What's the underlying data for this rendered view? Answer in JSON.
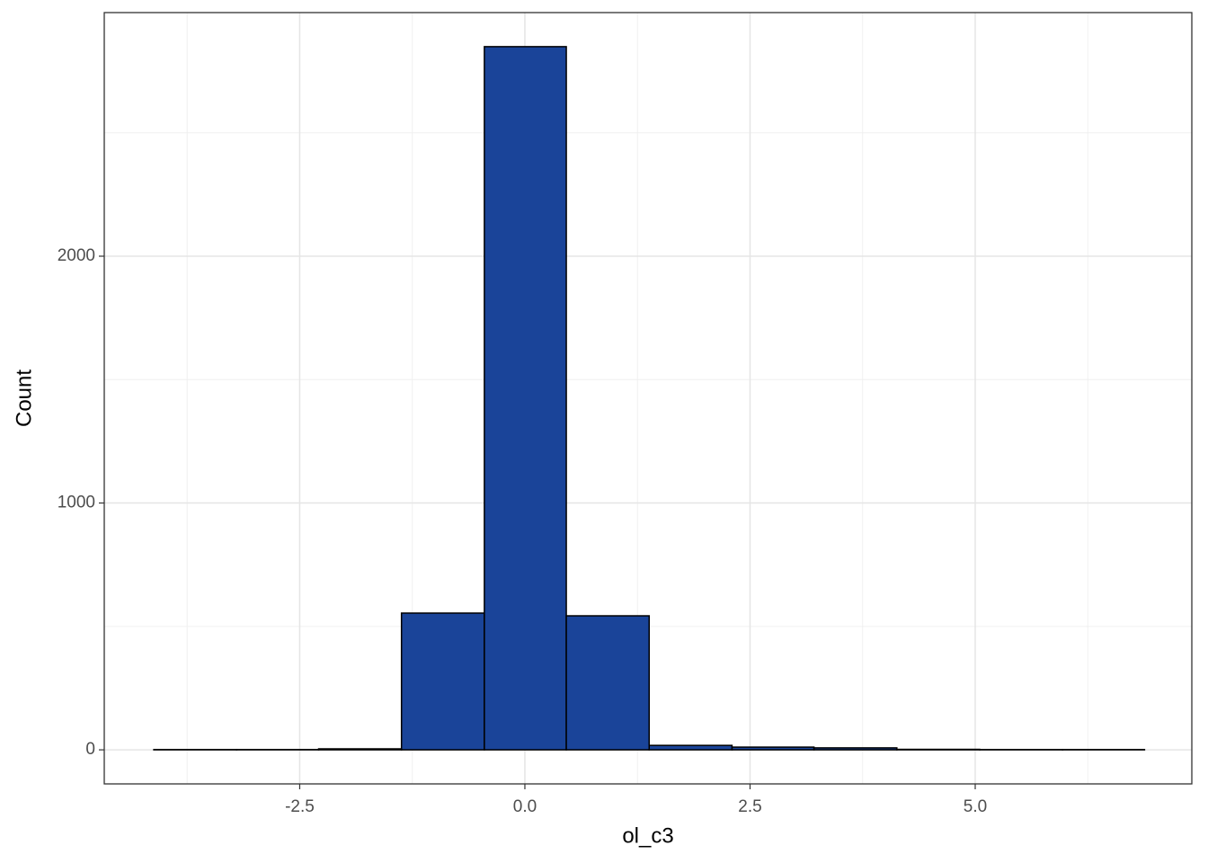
{
  "chart_data": {
    "type": "histogram",
    "x_label": "ol_c3",
    "y_label": "Count",
    "bins": [
      -4.12,
      -3.2,
      -2.29,
      -1.37,
      -0.45,
      0.46,
      1.38,
      2.3,
      3.21,
      4.13,
      5.05,
      5.97,
      6.88
    ],
    "values": [
      1,
      1,
      4,
      554,
      2849,
      543,
      18,
      11,
      8,
      2,
      1,
      1
    ],
    "color": "#1a4499",
    "xlim": [
      -4.67,
      7.405
    ],
    "ylim": [
      -138,
      2987
    ],
    "xticks": [
      -2.5,
      {
        "value": 0,
        "label": "0.0"
      },
      2.5,
      {
        "value": 5,
        "label": "5.0"
      }
    ],
    "yticks": [
      0,
      1000,
      2000
    ],
    "x_minor_grid": [
      -3.75,
      -1.25,
      1.25,
      3.75,
      6.25
    ],
    "y_minor_grid": [
      500,
      1500,
      2500
    ],
    "grid": true
  }
}
